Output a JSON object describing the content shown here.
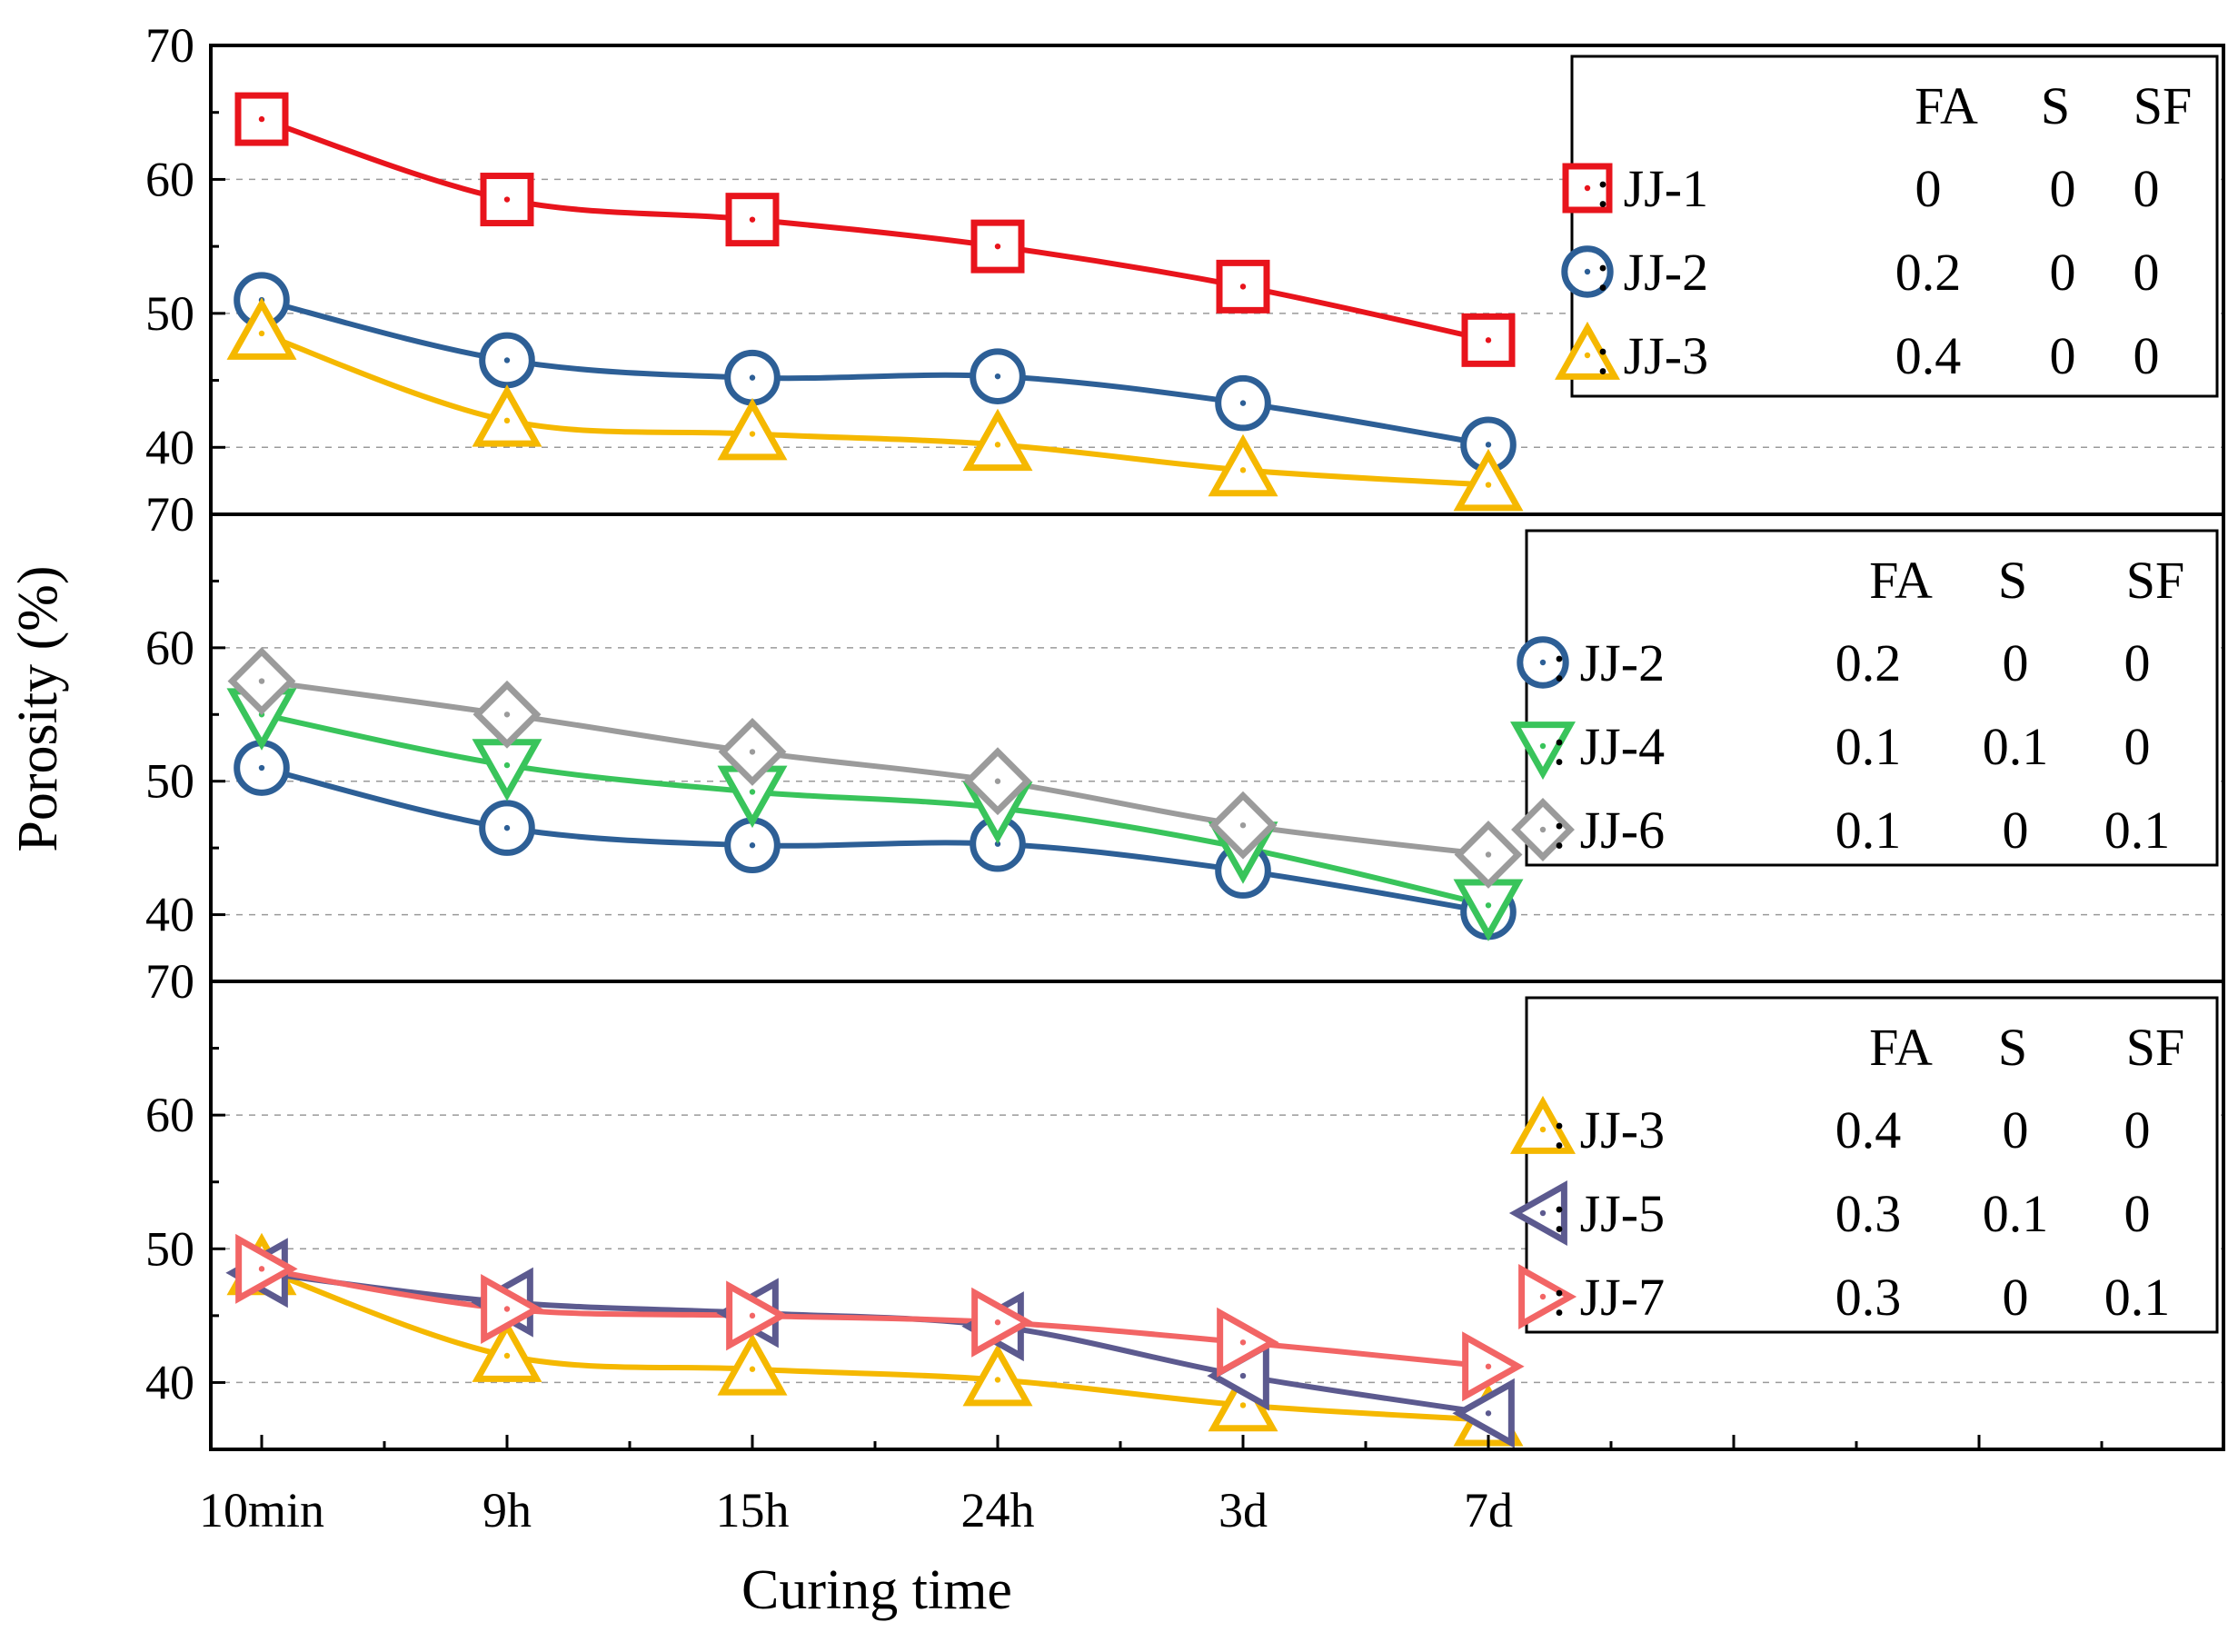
{
  "chart_data": {
    "type": "line",
    "ylabel": "Porosity (%)",
    "xlabel": "Curing time",
    "categories": [
      "10min",
      "9h",
      "15h",
      "24h",
      "3d",
      "7d"
    ],
    "legend_headers": [
      "FA",
      "S",
      "SF"
    ],
    "panels": [
      {
        "ylim": [
          35,
          70
        ],
        "yticks": [
          "70",
          "60",
          "50",
          "40"
        ],
        "series": [
          {
            "name": "JJ-1",
            "marker": "square",
            "color": "#e8141c",
            "values": [
              64.5,
              58.5,
              57.0,
              55.0,
              52.0,
              48.0
            ],
            "FA": "0",
            "S": "0",
            "SF": "0"
          },
          {
            "name": "JJ-2",
            "marker": "circle",
            "color": "#2d5f96",
            "values": [
              51.0,
              46.5,
              45.2,
              45.3,
              43.3,
              40.2
            ],
            "FA": "0.2",
            "S": "0",
            "SF": "0"
          },
          {
            "name": "JJ-3",
            "marker": "triangle-up",
            "color": "#f5b800",
            "values": [
              48.5,
              42.0,
              41.0,
              40.2,
              38.3,
              37.2
            ],
            "FA": "0.4",
            "S": "0",
            "SF": "0"
          }
        ]
      },
      {
        "ylim": [
          35,
          70
        ],
        "yticks": [
          "70",
          "60",
          "50",
          "40"
        ],
        "series": [
          {
            "name": "JJ-2",
            "marker": "circle",
            "color": "#2d5f96",
            "values": [
              51.0,
              46.5,
              45.2,
              45.3,
              43.3,
              40.2
            ],
            "FA": "0.2",
            "S": "0",
            "SF": "0"
          },
          {
            "name": "JJ-4",
            "marker": "triangle-down",
            "color": "#39c45b",
            "values": [
              55.0,
              51.2,
              49.2,
              48.0,
              45.0,
              40.7
            ],
            "FA": "0.1",
            "S": "0.1",
            "SF": "0"
          },
          {
            "name": "JJ-6",
            "marker": "diamond",
            "color": "#9b9b9b",
            "values": [
              57.5,
              55.0,
              52.2,
              50.0,
              46.7,
              44.5
            ],
            "FA": "0.1",
            "S": "0",
            "SF": "0.1"
          }
        ]
      },
      {
        "ylim": [
          35,
          70
        ],
        "yticks": [
          "70",
          "60",
          "50",
          "40"
        ],
        "series": [
          {
            "name": "JJ-3",
            "marker": "triangle-up",
            "color": "#f5b800",
            "values": [
              48.5,
              42.0,
              41.0,
              40.2,
              38.3,
              37.2
            ],
            "FA": "0.4",
            "S": "0",
            "SF": "0"
          },
          {
            "name": "JJ-5",
            "marker": "triangle-left",
            "color": "#5c5a8f",
            "values": [
              48.2,
              46.0,
              45.2,
              44.2,
              40.5,
              37.7
            ],
            "FA": "0.3",
            "S": "0.1",
            "SF": "0"
          },
          {
            "name": "JJ-7",
            "marker": "triangle-right",
            "color": "#f26565",
            "values": [
              48.5,
              45.5,
              45.0,
              44.5,
              43.0,
              41.2
            ],
            "FA": "0.3",
            "S": "0",
            "SF": "0.1"
          }
        ]
      }
    ]
  }
}
